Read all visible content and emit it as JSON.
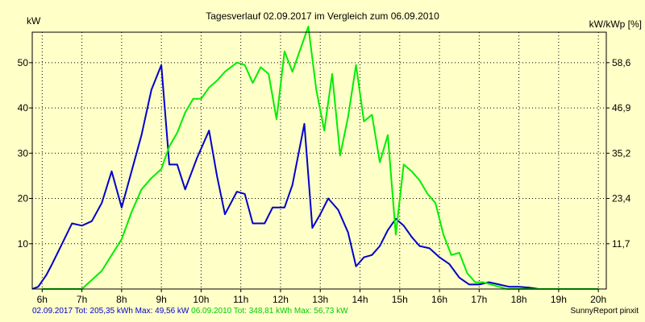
{
  "chart_data": {
    "type": "line",
    "title": "Tagesverlauf 02.09.2017 im Vergleich zum 06.09.2010",
    "ylabel_left": "kW",
    "ylabel_right": "kW/kWp [%]",
    "ylim_left": [
      0,
      56.73
    ],
    "left_ticks": [
      "10",
      "20",
      "30",
      "40",
      "50"
    ],
    "right_ticks": [
      "11,7",
      "23,4",
      "35,2",
      "46,9",
      "58,6"
    ],
    "xlim": [
      5.75,
      20.2
    ],
    "x_ticks": [
      "6h",
      "7h",
      "8h",
      "9h",
      "10h",
      "11h",
      "12h",
      "13h",
      "14h",
      "15h",
      "16h",
      "17h",
      "18h",
      "19h",
      "20h"
    ],
    "series": [
      {
        "name": "02.09.2017",
        "color": "#0000cc",
        "x": [
          5.75,
          5.9,
          6.1,
          6.25,
          6.5,
          6.75,
          7.0,
          7.25,
          7.5,
          7.75,
          8.0,
          8.25,
          8.5,
          8.75,
          9.0,
          9.2,
          9.4,
          9.6,
          9.9,
          10.2,
          10.4,
          10.6,
          10.9,
          11.1,
          11.3,
          11.6,
          11.8,
          12.1,
          12.3,
          12.6,
          12.8,
          13.0,
          13.2,
          13.45,
          13.7,
          13.9,
          14.1,
          14.3,
          14.5,
          14.7,
          14.9,
          15.1,
          15.3,
          15.5,
          15.75,
          16.0,
          16.25,
          16.5,
          16.75,
          17.0,
          17.25,
          17.5,
          17.75,
          18.0,
          18.25,
          18.5,
          18.75,
          19.0,
          19.25,
          19.5,
          19.75,
          20.0
        ],
        "values": [
          0,
          0.5,
          3,
          5.5,
          10,
          14.5,
          14,
          15,
          19,
          26,
          18,
          26,
          34,
          44,
          49.5,
          27.5,
          27.5,
          22,
          29,
          35,
          25,
          16.5,
          21.5,
          21,
          14.5,
          14.5,
          18,
          18,
          23,
          36.5,
          13.5,
          16.5,
          20,
          17.5,
          12.5,
          5,
          7,
          7.5,
          9.5,
          13,
          15.5,
          14,
          11.5,
          9.5,
          9,
          7,
          5.5,
          2.5,
          1,
          1,
          1.5,
          1,
          0.5,
          0.5,
          0.3,
          0,
          0,
          0,
          0,
          0,
          0,
          0
        ]
      },
      {
        "name": "06.09.2010",
        "color": "#00ee00",
        "x": [
          6.0,
          6.25,
          6.5,
          6.75,
          7.0,
          7.25,
          7.5,
          7.75,
          8.0,
          8.25,
          8.5,
          8.75,
          9.0,
          9.2,
          9.4,
          9.6,
          9.8,
          10.0,
          10.2,
          10.4,
          10.6,
          10.9,
          11.1,
          11.3,
          11.5,
          11.7,
          11.9,
          12.1,
          12.3,
          12.5,
          12.7,
          12.9,
          13.1,
          13.3,
          13.5,
          13.7,
          13.9,
          14.1,
          14.3,
          14.5,
          14.7,
          14.9,
          15.1,
          15.3,
          15.5,
          15.7,
          15.9,
          16.1,
          16.3,
          16.5,
          16.7,
          16.9,
          17.1,
          17.3,
          17.5,
          17.7,
          17.9,
          18.1,
          18.3,
          18.5,
          18.75,
          19.0,
          19.25,
          19.5,
          19.75,
          20.0
        ],
        "values": [
          0,
          0,
          0,
          0,
          0,
          2,
          4,
          7.5,
          11,
          17,
          22,
          24.5,
          26.5,
          31.5,
          34.5,
          39,
          42,
          42,
          44.5,
          46,
          48,
          50,
          49.5,
          45.5,
          49,
          47.5,
          37.5,
          52.5,
          48,
          53,
          58,
          44,
          35,
          47.5,
          29.5,
          38,
          49.5,
          37,
          38.5,
          28,
          34,
          12,
          27.5,
          26,
          24,
          21,
          19,
          12,
          7.5,
          8,
          3.5,
          1.5,
          1.5,
          1,
          0.5,
          0,
          0,
          0,
          0,
          0,
          0,
          0,
          0,
          0,
          0,
          0
        ]
      }
    ]
  },
  "footer": {
    "series1_summary": "02.09.2017 Tot: 205,35 kWh Max: 49,56 kW",
    "series2_summary": "06.09.2010 Tot: 348,81 kWh Max: 56,73 kW",
    "brand": "SunnyReport pinxit"
  }
}
